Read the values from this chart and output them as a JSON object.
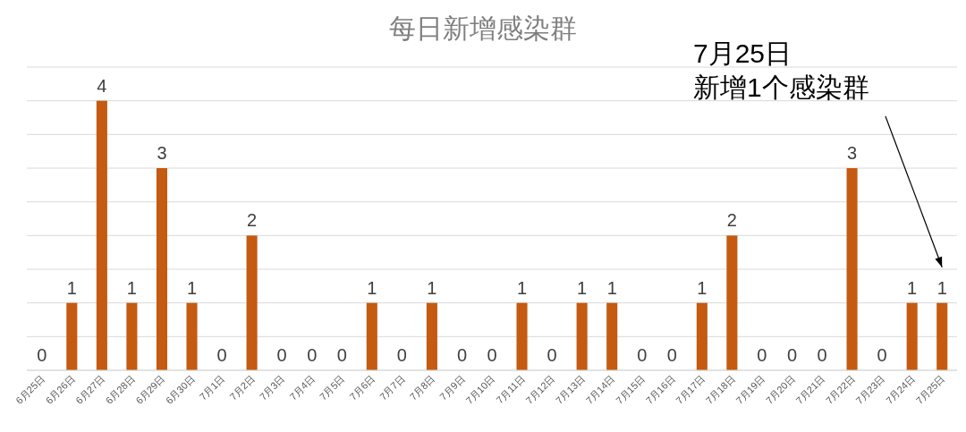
{
  "chart_data": {
    "type": "bar",
    "title": "每日新增感染群",
    "categories": [
      "6月25日",
      "6月26日",
      "6月27日",
      "6月28日",
      "6月29日",
      "6月30日",
      "7月1日",
      "7月2日",
      "7月3日",
      "7月4日",
      "7月5日",
      "7月6日",
      "7月7日",
      "7月8日",
      "7月9日",
      "7月10日",
      "7月11日",
      "7月12日",
      "7月13日",
      "7月14日",
      "7月15日",
      "7月16日",
      "7月17日",
      "7月18日",
      "7月19日",
      "7月20日",
      "7月21日",
      "7月22日",
      "7月23日",
      "7月24日",
      "7月25日"
    ],
    "values": [
      0,
      1,
      4,
      1,
      3,
      1,
      0,
      2,
      0,
      0,
      0,
      1,
      0,
      1,
      0,
      0,
      1,
      0,
      1,
      1,
      0,
      0,
      1,
      2,
      0,
      0,
      0,
      3,
      0,
      1,
      1
    ],
    "color": "#c55a11",
    "data_labels": true,
    "ylim": [
      0,
      4.5
    ],
    "yticks": [
      {
        "value": 0,
        "label": null
      },
      {
        "value": 0.5,
        "label": null
      },
      {
        "value": 1,
        "label": null
      },
      {
        "value": 1.5,
        "label": null
      },
      {
        "value": 2,
        "label": null
      },
      {
        "value": 2.5,
        "label": null
      },
      {
        "value": 3,
        "label": null
      },
      {
        "value": 3.5,
        "label": null
      },
      {
        "value": 4,
        "label": null
      },
      {
        "value": 4.5,
        "label": null
      }
    ],
    "grid": "y",
    "annotations": [
      "7月25日",
      "新增1个感染群"
    ]
  }
}
